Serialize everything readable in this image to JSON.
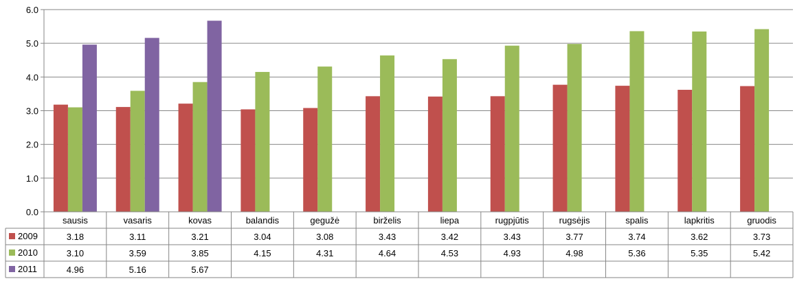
{
  "chart_data": {
    "type": "bar",
    "categories": [
      "sausis",
      "vasaris",
      "kovas",
      "balandis",
      "gegužė",
      "birželis",
      "liepa",
      "rugpjūtis",
      "rugsėjis",
      "spalis",
      "lapkritis",
      "gruodis"
    ],
    "series": [
      {
        "name": "2009",
        "color": "#c0504d",
        "values": [
          3.18,
          3.11,
          3.21,
          3.04,
          3.08,
          3.43,
          3.42,
          3.43,
          3.77,
          3.74,
          3.62,
          3.73
        ]
      },
      {
        "name": "2010",
        "color": "#9bbb59",
        "values": [
          3.1,
          3.59,
          3.85,
          4.15,
          4.31,
          4.64,
          4.53,
          4.93,
          4.98,
          5.36,
          5.35,
          5.42
        ]
      },
      {
        "name": "2011",
        "color": "#8064a2",
        "values": [
          4.96,
          5.16,
          5.67,
          null,
          null,
          null,
          null,
          null,
          null,
          null,
          null,
          null
        ]
      }
    ],
    "yticks": [
      "0.0",
      "1.0",
      "2.0",
      "3.0",
      "4.0",
      "5.0",
      "6.0"
    ],
    "ylim": [
      0,
      6
    ],
    "grid": true,
    "data_table": true,
    "legend_placement": "data-table-left"
  }
}
